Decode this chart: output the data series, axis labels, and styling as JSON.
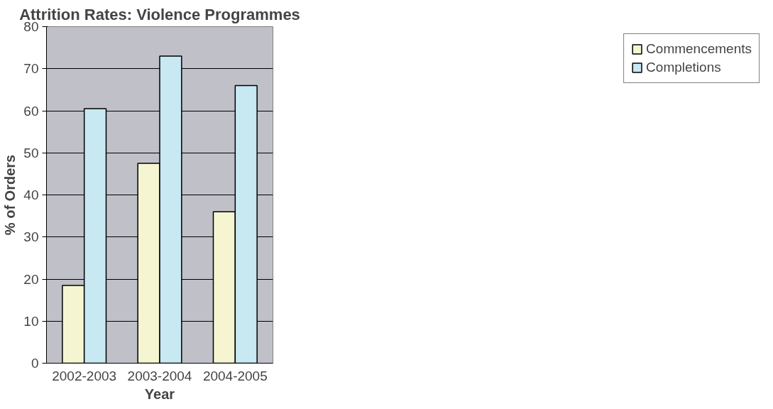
{
  "chart_data": {
    "type": "bar",
    "title": "Attrition Rates: Violence Programmes",
    "xlabel": "Year",
    "ylabel": "% of Orders",
    "categories": [
      "2002-2003",
      "2003-2004",
      "2004-2005"
    ],
    "series": [
      {
        "name": "Commencements",
        "color": "#f5f5d2",
        "values": [
          18.5,
          47.5,
          36
        ]
      },
      {
        "name": "Completions",
        "color": "#c8e8f2",
        "values": [
          60.5,
          73,
          66
        ]
      }
    ],
    "ylim": [
      0,
      80
    ],
    "yticks": [
      0,
      10,
      20,
      30,
      40,
      50,
      60,
      70,
      80
    ],
    "grid": "y",
    "legend": "right"
  }
}
